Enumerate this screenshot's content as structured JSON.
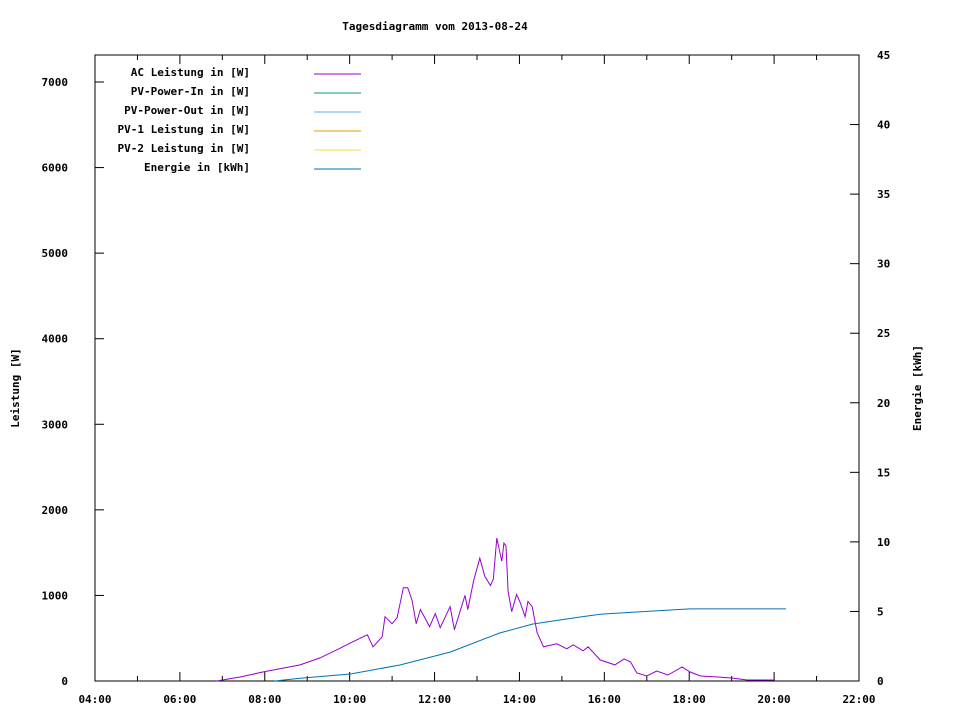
{
  "chart_data": {
    "type": "line",
    "title": "Tagesdiagramm vom 2013-08-24",
    "ylabel": "Leistung [W]",
    "y2label": "Energie [kWh]",
    "xlim": [
      "04:00",
      "22:00"
    ],
    "ylim": [
      0,
      7300
    ],
    "y2lim": [
      0,
      45
    ],
    "xticks": [
      "04:00",
      "06:00",
      "08:00",
      "10:00",
      "12:00",
      "14:00",
      "16:00",
      "18:00",
      "20:00",
      "22:00"
    ],
    "yticks": [
      "0",
      "1000",
      "2000",
      "3000",
      "4000",
      "5000",
      "6000",
      "7000"
    ],
    "y2ticks": [
      "0",
      "5",
      "10",
      "15",
      "20",
      "25",
      "30",
      "35",
      "40",
      "45"
    ],
    "grid": false,
    "legend_placement": "top-left",
    "series": [
      {
        "name": "AC Leistung in [W]",
        "color": "#9400d3",
        "axis": "left",
        "x": [
          "06:52",
          "07:25",
          "07:58",
          "08:50",
          "09:18",
          "09:42",
          "10:05",
          "10:25",
          "10:33",
          "10:46",
          "10:50",
          "11:00",
          "11:07",
          "11:16",
          "11:22",
          "11:28",
          "11:34",
          "11:40",
          "11:53",
          "12:01",
          "12:08",
          "12:22",
          "12:28",
          "12:43",
          "12:47",
          "12:55",
          "13:04",
          "13:11",
          "13:19",
          "13:23",
          "13:28",
          "13:32",
          "13:35",
          "13:38",
          "13:41",
          "13:44",
          "13:49",
          "13:56",
          "14:01",
          "14:08",
          "14:12",
          "14:18",
          "14:25",
          "14:34",
          "14:53",
          "15:07",
          "15:16",
          "15:30",
          "15:37",
          "15:54",
          "16:15",
          "16:28",
          "16:37",
          "16:46",
          "17:00",
          "17:14",
          "17:30",
          "17:50",
          "18:01",
          "18:16",
          "18:40",
          "19:00",
          "19:22",
          "20:01"
        ],
        "y": [
          0,
          47,
          106,
          188,
          270,
          365,
          460,
          540,
          400,
          517,
          750,
          670,
          740,
          1090,
          1090,
          950,
          670,
          835,
          635,
          788,
          623,
          870,
          600,
          1000,
          835,
          1165,
          1435,
          1223,
          1117,
          1188,
          1670,
          1517,
          1400,
          1611,
          1576,
          1047,
          811,
          1011,
          917,
          752,
          929,
          870,
          564,
          400,
          435,
          376,
          423,
          353,
          400,
          247,
          188,
          258,
          223,
          94,
          59,
          117,
          70,
          165,
          106,
          59,
          47,
          35,
          12,
          12
        ]
      },
      {
        "name": "PV-Power-In in [W]",
        "color": "#009e73",
        "axis": "left",
        "x": [],
        "y": []
      },
      {
        "name": "PV-Power-Out in [W]",
        "color": "#56b4e9",
        "axis": "left",
        "x": [],
        "y": []
      },
      {
        "name": "PV-1 Leistung in [W]",
        "color": "#e69f00",
        "axis": "left",
        "x": [],
        "y": []
      },
      {
        "name": "PV-2 Leistung in [W]",
        "color": "#f0e442",
        "axis": "left",
        "x": [],
        "y": []
      },
      {
        "name": "Energie in [kWh]",
        "color": "#0072b2",
        "axis": "right",
        "x": [
          "08:14",
          "08:50",
          "10:01",
          "11:11",
          "12:22",
          "13:32",
          "14:19",
          "15:26",
          "15:54",
          "17:09",
          "18:01",
          "20:17"
        ],
        "y": [
          0,
          0.2,
          0.5,
          1.15,
          2.08,
          3.45,
          4.1,
          4.6,
          4.8,
          5.03,
          5.18,
          5.18
        ]
      }
    ]
  }
}
